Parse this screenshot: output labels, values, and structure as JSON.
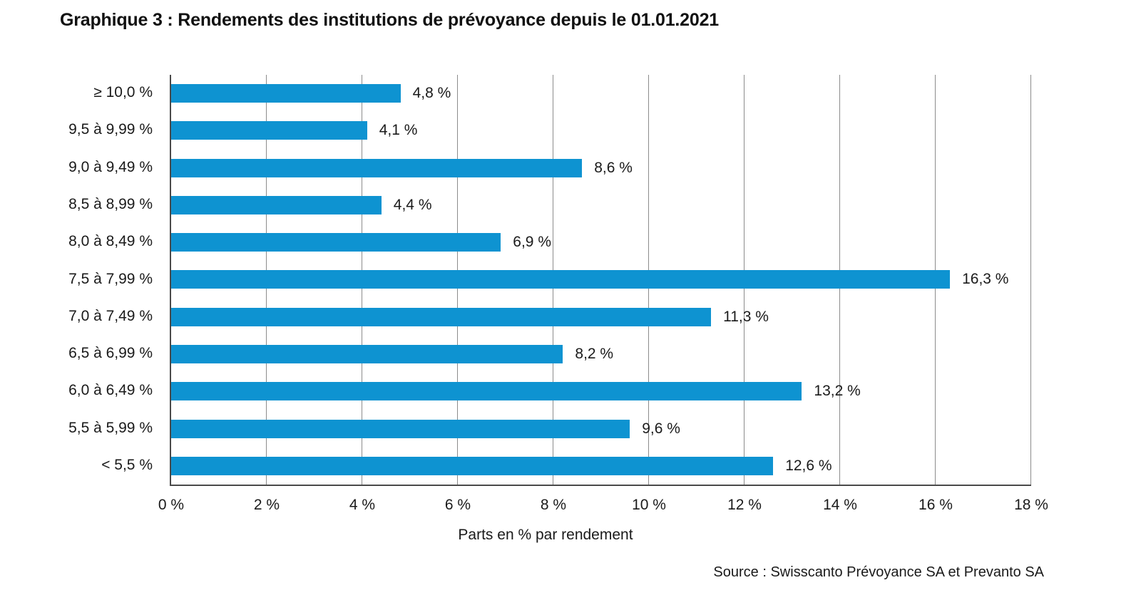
{
  "title": "Graphique 3 : Rendements des institutions de prévoyance depuis le 01.01.2021",
  "source": "Source : Swisscanto Prévoyance SA et Prevanto SA",
  "chart_data": {
    "type": "bar",
    "orientation": "horizontal",
    "title": "Graphique 3 : Rendements des institutions de prévoyance depuis le 01.01.2021",
    "categories": [
      "≥ 10,0 %",
      "9,5 à 9,99 %",
      "9,0 à 9,49 %",
      "8,5 à 8,99 %",
      "8,0 à 8,49 %",
      "7,5 à 7,99 %",
      "7,0 à 7,49 %",
      "6,5 à 6,99 %",
      "6,0 à 6,49 %",
      "5,5 à 5,99 %",
      "< 5,5 %"
    ],
    "values": [
      4.8,
      4.1,
      8.6,
      4.4,
      6.9,
      16.3,
      11.3,
      8.2,
      13.2,
      9.6,
      12.6
    ],
    "value_labels": [
      "4,8 %",
      "4,1 %",
      "8,6 %",
      "4,4 %",
      "6,9 %",
      "16,3 %",
      "11,3 %",
      "8,2 %",
      "13,2 %",
      "9,6 %",
      "12,6 %"
    ],
    "xlabel": "Parts en % par rendement",
    "ylabel": "",
    "x_ticks": [
      "0 %",
      "2 %",
      "4 %",
      "6 %",
      "8 %",
      "10 %",
      "12 %",
      "14 %",
      "16 %",
      "18 %"
    ],
    "xlim": [
      0,
      18
    ],
    "grid": true,
    "legend": false,
    "bar_color": "#0e93d1",
    "gridline_color": "#8c8c8c",
    "axis_color": "#4a4a4a"
  }
}
